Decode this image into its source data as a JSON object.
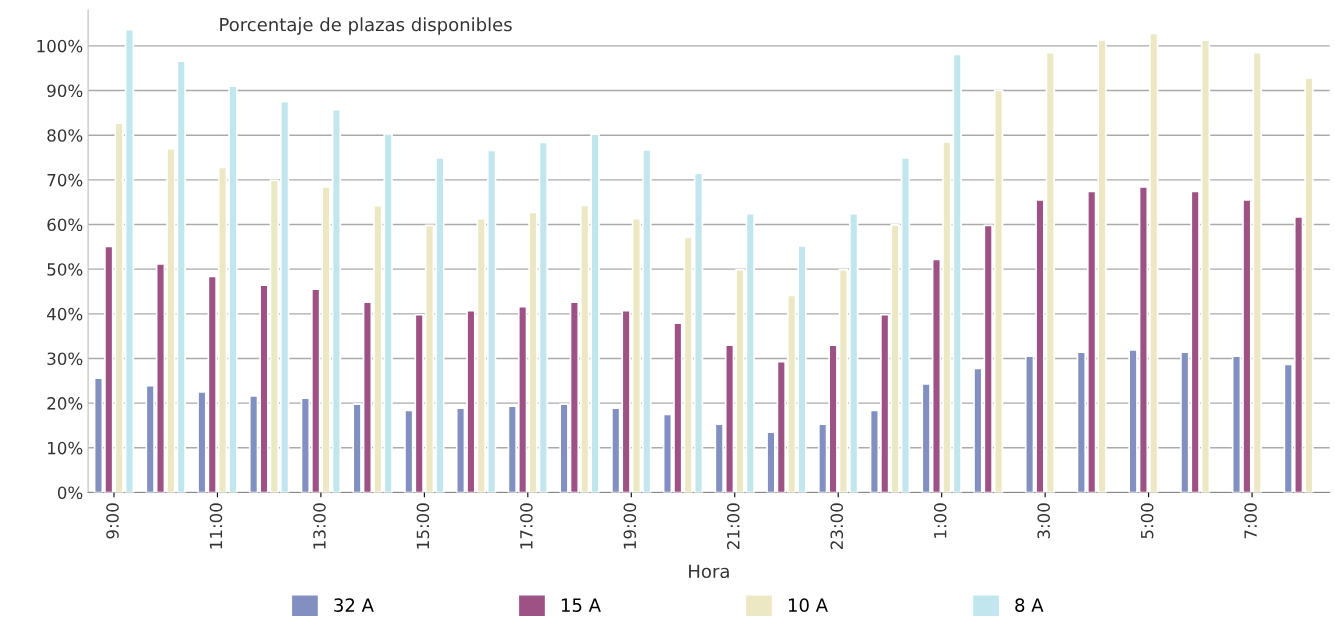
{
  "chart_data": {
    "type": "bar",
    "title": "Porcentaje de plazas disponibles",
    "xlabel": "Hora",
    "categories": [
      "9:00",
      null,
      "11:00",
      null,
      "13:00",
      null,
      "15:00",
      null,
      "17:00",
      null,
      "19:00",
      null,
      "21:00",
      null,
      "23:00",
      null,
      "1:00",
      null,
      "3:00",
      null,
      "5:00",
      null,
      "7:00",
      null
    ],
    "series": [
      {
        "name": "32 A",
        "color": "#8190c0",
        "values": [
          25.6,
          23.9,
          22.5,
          21.6,
          21.1,
          19.8,
          18.4,
          18.9,
          19.3,
          19.8,
          18.9,
          17.5,
          15.3,
          13.5,
          15.3,
          18.4,
          24.3,
          27.8,
          30.5,
          31.4,
          31.9,
          31.4,
          30.5,
          28.7
        ]
      },
      {
        "name": "15 A",
        "color": "#9e5184",
        "values": [
          55.1,
          51.2,
          48.4,
          46.4,
          45.5,
          42.6,
          39.8,
          40.7,
          41.6,
          42.6,
          40.7,
          37.9,
          33.0,
          29.3,
          33.0,
          39.8,
          52.2,
          59.8,
          65.5,
          67.4,
          68.4,
          67.4,
          65.5,
          61.7
        ]
      },
      {
        "name": "10 A",
        "color": "#ede8c4",
        "values": [
          82.7,
          77.0,
          72.8,
          69.9,
          68.4,
          64.2,
          59.8,
          61.3,
          62.7,
          64.3,
          61.3,
          57.1,
          49.9,
          44.1,
          49.9,
          59.9,
          78.5,
          90.0,
          98.5,
          101.3,
          102.8,
          101.3,
          98.5,
          92.8
        ]
      },
      {
        "name": "8 A",
        "color": "#c2e6ee",
        "values": [
          103.6,
          96.6,
          91.0,
          87.5,
          85.7,
          80.3,
          74.9,
          76.6,
          78.4,
          80.2,
          76.7,
          71.5,
          62.4,
          55.2,
          62.4,
          74.9,
          98.1,
          null,
          null,
          null,
          null,
          null,
          null,
          null
        ]
      }
    ],
    "ylim": [
      0,
      108
    ],
    "yticks": [
      {
        "value": 0,
        "label": "0%"
      },
      {
        "value": 10,
        "label": "10%"
      },
      {
        "value": 20,
        "label": "20%"
      },
      {
        "value": 30,
        "label": "30%"
      },
      {
        "value": 40,
        "label": "40%"
      },
      {
        "value": 50,
        "label": "50%"
      },
      {
        "value": 60,
        "label": "60%"
      },
      {
        "value": 70,
        "label": "70%"
      },
      {
        "value": 80,
        "label": "80%"
      },
      {
        "value": 90,
        "label": "90%"
      },
      {
        "value": 100,
        "label": "100%"
      }
    ],
    "grid": "y",
    "legend": "bottom"
  }
}
